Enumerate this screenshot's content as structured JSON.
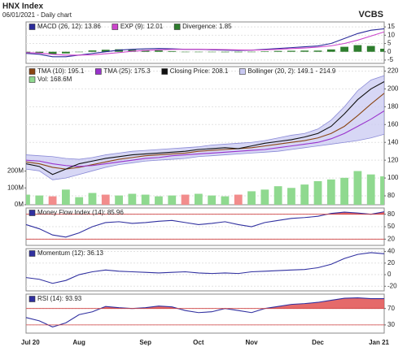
{
  "header": {
    "title": "HNX Index",
    "subtitle": "06/01/2021 - Daily chart",
    "source": "VCBS"
  },
  "chart_data": [
    {
      "type": "combo",
      "ylim": [
        -7,
        18
      ],
      "yticks": [
        15,
        10,
        5,
        0,
        -5
      ],
      "grid": true,
      "series": [
        {
          "name": "MACD (26, 12): 13.86",
          "type": "line",
          "color": "#2b2b9a",
          "values": [
            -1,
            -1.5,
            -3,
            -3,
            -2,
            -1,
            0,
            1,
            1.5,
            1.8,
            2,
            1.8,
            1.5,
            1.5,
            1.2,
            1,
            0.8,
            1,
            1.5,
            2,
            2.5,
            3,
            3.5,
            5,
            8,
            11,
            13,
            13.86
          ]
        },
        {
          "name": "EXP (9): 12.01",
          "type": "line",
          "color": "#cc44cc",
          "values": [
            -0.5,
            -0.8,
            -1.5,
            -2,
            -2,
            -1.8,
            -1.2,
            -0.5,
            0.3,
            0.8,
            1.2,
            1.4,
            1.5,
            1.5,
            1.4,
            1.3,
            1.1,
            1,
            1.2,
            1.5,
            1.9,
            2.3,
            2.8,
            3.6,
            5,
            7,
            9.5,
            12.01
          ]
        },
        {
          "name": "Divergence: 1.85",
          "type": "bar",
          "color": "#2d7d2d",
          "values": [
            -0.5,
            -0.7,
            -1.5,
            -1,
            0,
            0.8,
            1.2,
            1.5,
            1.2,
            1,
            0.8,
            0.4,
            0,
            0,
            -0.2,
            -0.3,
            -0.3,
            0,
            0.3,
            0.5,
            0.6,
            0.7,
            0.7,
            1.4,
            3,
            4,
            3.5,
            1.85
          ]
        }
      ]
    },
    {
      "type": "combo",
      "ylim": [
        70,
        225
      ],
      "yticks": [
        220,
        200,
        180,
        160,
        140,
        120,
        100,
        80
      ],
      "grid": true,
      "y2lim": [
        0,
        820
      ],
      "y2ticks": [
        {
          "value": 200,
          "label": "200M"
        },
        {
          "value": 100,
          "label": "100M"
        },
        {
          "value": 0,
          "label": "0M"
        }
      ],
      "series": [
        {
          "name": "TMA (10): 195.1",
          "type": "line",
          "color": "#8b4513",
          "values": [
            118,
            116,
            112,
            110,
            112,
            115,
            118,
            121,
            123,
            125,
            126,
            127,
            128,
            130,
            131,
            132,
            133,
            134,
            136,
            138,
            140,
            142,
            145,
            150,
            158,
            170,
            183,
            195.1
          ]
        },
        {
          "name": "TMA (25): 175.3",
          "type": "line",
          "color": "#9932cc",
          "values": [
            120,
            119,
            116,
            114,
            113,
            114,
            116,
            118,
            120,
            122,
            123,
            125,
            126,
            127,
            128,
            129,
            130,
            131,
            132,
            134,
            136,
            138,
            140,
            144,
            150,
            158,
            166,
            175.3
          ]
        },
        {
          "name": "Closing Price: 208.1",
          "type": "line",
          "color": "#111111",
          "values": [
            116,
            113,
            104,
            110,
            116,
            119,
            122,
            124,
            126,
            127,
            128,
            129,
            130,
            132,
            133,
            134,
            133,
            136,
            139,
            141,
            143,
            146,
            150,
            158,
            172,
            188,
            200,
            208.1
          ]
        },
        {
          "name": "Bollinger (20, 2): 149.1 - 214.9",
          "type": "band",
          "color": "#c9c9f2",
          "upper": [
            126,
            125,
            124,
            122,
            121,
            123,
            126,
            128,
            130,
            131,
            132,
            133,
            134,
            135,
            137,
            138,
            139,
            140,
            142,
            145,
            148,
            150,
            155,
            165,
            180,
            198,
            210,
            214.9
          ],
          "lower": [
            110,
            108,
            98,
            100,
            104,
            108,
            112,
            115,
            117,
            119,
            120,
            121,
            122,
            124,
            125,
            126,
            127,
            128,
            129,
            130,
            132,
            134,
            136,
            138,
            140,
            142,
            145,
            149.1
          ]
        },
        {
          "name": "Vol: 168.6M",
          "type": "bar",
          "axis": "y2",
          "color": "#8fd98f",
          "values": [
            60,
            55,
            50,
            90,
            45,
            70,
            60,
            55,
            65,
            60,
            50,
            55,
            60,
            65,
            55,
            50,
            60,
            80,
            90,
            110,
            100,
            120,
            140,
            150,
            160,
            200,
            180,
            168.6
          ],
          "colors": [
            "#8fd98f",
            "#8fd98f",
            "#f28c8c",
            "#8fd98f",
            "#8fd98f",
            "#8fd98f",
            "#f28c8c",
            "#8fd98f",
            "#8fd98f",
            "#8fd98f",
            "#8fd98f",
            "#8fd98f",
            "#f28c8c",
            "#8fd98f",
            "#8fd98f",
            "#8fd98f",
            "#f28c8c",
            "#8fd98f",
            "#8fd98f",
            "#8fd98f",
            "#8fd98f",
            "#8fd98f",
            "#8fd98f",
            "#8fd98f",
            "#8fd98f",
            "#8fd98f",
            "#8fd98f",
            "#8fd98f"
          ]
        }
      ]
    },
    {
      "type": "combo",
      "ylim": [
        5,
        95
      ],
      "yticks": [
        80,
        50,
        20
      ],
      "grid": true,
      "overbought": 80,
      "oversold": 20,
      "series": [
        {
          "name": "Money Flow Index (14): 85.96",
          "type": "line",
          "color": "#3030a0",
          "values": [
            55,
            45,
            30,
            25,
            35,
            50,
            60,
            62,
            58,
            60,
            63,
            65,
            60,
            55,
            58,
            62,
            55,
            50,
            60,
            65,
            70,
            72,
            75,
            82,
            85,
            83,
            80,
            85.96
          ]
        }
      ]
    },
    {
      "type": "combo",
      "ylim": [
        -28,
        45
      ],
      "yticks": [
        40,
        20,
        0,
        -20
      ],
      "grid": true,
      "series": [
        {
          "name": "Momentum (12): 36.13",
          "type": "line",
          "color": "#3030a0",
          "values": [
            -5,
            -8,
            -15,
            -10,
            0,
            5,
            8,
            6,
            5,
            4,
            3,
            4,
            5,
            3,
            2,
            3,
            2,
            5,
            6,
            7,
            8,
            9,
            12,
            18,
            28,
            35,
            38,
            36.13
          ]
        }
      ]
    },
    {
      "type": "combo",
      "ylim": [
        10,
        105
      ],
      "yticks": [
        70,
        30
      ],
      "grid": true,
      "overbought": 70,
      "oversold": 30,
      "categories": [
        "Jul 20",
        null,
        null,
        null,
        "Aug",
        null,
        null,
        null,
        null,
        "Sep",
        null,
        null,
        null,
        "Oct",
        null,
        null,
        null,
        "Nov",
        null,
        null,
        null,
        null,
        "Dec",
        null,
        null,
        null,
        null,
        "Jan 21"
      ],
      "series": [
        {
          "name": "RSI (14): 93.93",
          "type": "line",
          "color": "#3030a0",
          "values": [
            48,
            40,
            25,
            35,
            55,
            62,
            75,
            72,
            70,
            72,
            76,
            74,
            65,
            60,
            62,
            70,
            65,
            60,
            70,
            75,
            80,
            82,
            85,
            90,
            95,
            96,
            94,
            93.93
          ]
        }
      ]
    }
  ]
}
